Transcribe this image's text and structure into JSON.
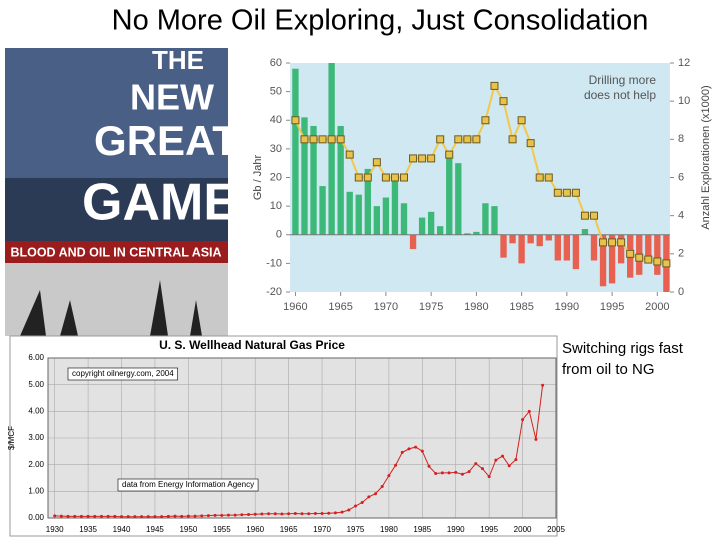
{
  "title": "No More Oil Exploring, Just Consolidation",
  "book_cover": {
    "title_lines": [
      "THE",
      "NEW",
      "GREAT",
      "GAME"
    ],
    "subtitle": "BLOOD AND OIL IN CENTRAL ASIA"
  },
  "caption": [
    "Switching rigs fast",
    "from oil to NG"
  ],
  "chart_data": [
    {
      "type": "bar",
      "ylabel": "Gb / Jahr",
      "y2label": "Anzahl Explorationen (x1000)",
      "annotation": [
        "Drilling more",
        "does not help"
      ],
      "x": [
        1960,
        1961,
        1962,
        1963,
        1964,
        1965,
        1966,
        1967,
        1968,
        1969,
        1970,
        1971,
        1972,
        1973,
        1974,
        1975,
        1976,
        1977,
        1978,
        1979,
        1980,
        1981,
        1982,
        1983,
        1984,
        1985,
        1986,
        1987,
        1988,
        1989,
        1990,
        1991,
        1992,
        1993,
        1994,
        1995,
        1996,
        1997,
        1998,
        1999,
        2000,
        2001
      ],
      "series": [
        {
          "type": "bar",
          "color": "#3cb878",
          "negative_color": "#e8604f",
          "values": [
            58,
            41,
            38,
            17,
            60,
            38,
            15,
            14,
            23,
            10,
            13,
            19,
            11,
            -5,
            6,
            8,
            3,
            27,
            25,
            0.5,
            1,
            11,
            10,
            -8,
            -3,
            -10,
            -3,
            -4,
            -2,
            -9,
            -9,
            -12,
            2,
            -9,
            -18,
            -17,
            -10,
            -15,
            -14,
            -10,
            -14,
            -20
          ]
        },
        {
          "type": "line",
          "axis": "y2",
          "color": "#f2c84b",
          "marker_color": "#e8c24a",
          "values": [
            9,
            8,
            8,
            8,
            8,
            8,
            7.2,
            6,
            6,
            6.8,
            6,
            6,
            6,
            7,
            7,
            7,
            8,
            7.2,
            8,
            8,
            8,
            9,
            10.8,
            10,
            8,
            9,
            7.8,
            6,
            6,
            5.2,
            5.2,
            5.2,
            4,
            4,
            2.6,
            2.6,
            2.6,
            2,
            1.8,
            1.7,
            1.6,
            1.5
          ]
        }
      ],
      "xlim": [
        1959.4,
        2001.4
      ],
      "xticks": [
        1960,
        1965,
        1970,
        1975,
        1980,
        1985,
        1990,
        1995,
        2000
      ],
      "ylim": [
        -20,
        60
      ],
      "yticks": [
        -20,
        -10,
        0,
        10,
        20,
        30,
        40,
        50,
        60
      ],
      "y2lim": [
        0,
        12
      ],
      "y2ticks": [
        0,
        2,
        4,
        6,
        8,
        10,
        12
      ],
      "grid": false,
      "background": "#cfe8f1"
    },
    {
      "type": "line",
      "title": "U. S. Wellhead Natural Gas Price",
      "ylabel": "$/MCF",
      "notes": [
        "copyright oilnergy.com, 2004",
        "data from Energy Information Agency"
      ],
      "x": [
        1930,
        1931,
        1932,
        1933,
        1934,
        1935,
        1936,
        1937,
        1938,
        1939,
        1940,
        1941,
        1942,
        1943,
        1944,
        1945,
        1946,
        1947,
        1948,
        1949,
        1950,
        1951,
        1952,
        1953,
        1954,
        1955,
        1956,
        1957,
        1958,
        1959,
        1960,
        1961,
        1962,
        1963,
        1964,
        1965,
        1966,
        1967,
        1968,
        1969,
        1970,
        1971,
        1972,
        1973,
        1974,
        1975,
        1976,
        1977,
        1978,
        1979,
        1980,
        1981,
        1982,
        1983,
        1984,
        1985,
        1986,
        1987,
        1988,
        1989,
        1990,
        1991,
        1992,
        1993,
        1994,
        1995,
        1996,
        1997,
        1998,
        1999,
        2000,
        2001,
        2002,
        2003
      ],
      "series": [
        {
          "color": "#d42020",
          "values": [
            0.08,
            0.07,
            0.06,
            0.06,
            0.06,
            0.06,
            0.06,
            0.06,
            0.06,
            0.06,
            0.05,
            0.05,
            0.05,
            0.05,
            0.05,
            0.05,
            0.05,
            0.06,
            0.07,
            0.06,
            0.07,
            0.07,
            0.08,
            0.09,
            0.1,
            0.1,
            0.11,
            0.11,
            0.12,
            0.13,
            0.14,
            0.15,
            0.16,
            0.16,
            0.15,
            0.16,
            0.17,
            0.16,
            0.16,
            0.17,
            0.17,
            0.18,
            0.19,
            0.22,
            0.3,
            0.45,
            0.58,
            0.79,
            0.91,
            1.18,
            1.59,
            1.98,
            2.46,
            2.59,
            2.66,
            2.51,
            1.94,
            1.67,
            1.69,
            1.69,
            1.71,
            1.64,
            1.74,
            2.04,
            1.85,
            1.55,
            2.17,
            2.32,
            1.96,
            2.19,
            3.69,
            4.0,
            2.95,
            4.98
          ]
        }
      ],
      "xlim": [
        1929,
        2005
      ],
      "xticks": [
        1930,
        1935,
        1940,
        1945,
        1950,
        1955,
        1960,
        1965,
        1970,
        1975,
        1980,
        1985,
        1990,
        1995,
        2000,
        2005
      ],
      "ylim": [
        0,
        6
      ],
      "yticks": [
        {
          "value": 0,
          "label": "0.00"
        },
        {
          "value": 1,
          "label": "1.00"
        },
        {
          "value": 2,
          "label": "2.00"
        },
        {
          "value": 3,
          "label": "3.00"
        },
        {
          "value": 4,
          "label": "4.00"
        },
        {
          "value": 5,
          "label": "5.00"
        },
        {
          "value": 6,
          "label": "6.00"
        }
      ],
      "grid": true,
      "background": "#e2e2e2"
    }
  ]
}
